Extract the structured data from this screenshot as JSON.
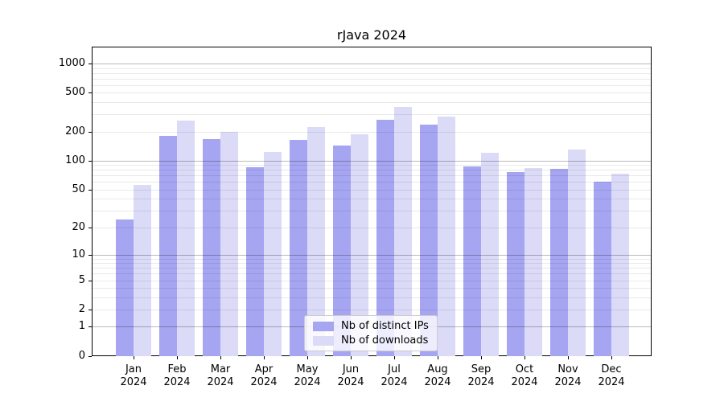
{
  "chart_data": {
    "type": "bar",
    "title": "rJava 2024",
    "categories": [
      "Jan 2024",
      "Feb 2024",
      "Mar 2024",
      "Apr 2024",
      "May 2024",
      "Jun 2024",
      "Jul 2024",
      "Aug 2024",
      "Sep 2024",
      "Oct 2024",
      "Nov 2024",
      "Dec 2024"
    ],
    "series": [
      {
        "name": "Nb of distinct IPs",
        "color": "#a5a5f2",
        "values": [
          24,
          182,
          166,
          85,
          163,
          144,
          266,
          236,
          87,
          76,
          82,
          60
        ]
      },
      {
        "name": "Nb of downloads",
        "color": "#dbdbf8",
        "values": [
          56,
          258,
          197,
          122,
          221,
          189,
          355,
          285,
          120,
          84,
          130,
          73
        ]
      }
    ],
    "yscale": "log1p",
    "yticks": [
      0,
      1,
      2,
      5,
      10,
      20,
      50,
      100,
      200,
      500,
      1000
    ],
    "ylim": [
      0,
      1500
    ],
    "xlabel": "",
    "ylabel": "",
    "grid": true,
    "legend_position": "bottom-center"
  }
}
